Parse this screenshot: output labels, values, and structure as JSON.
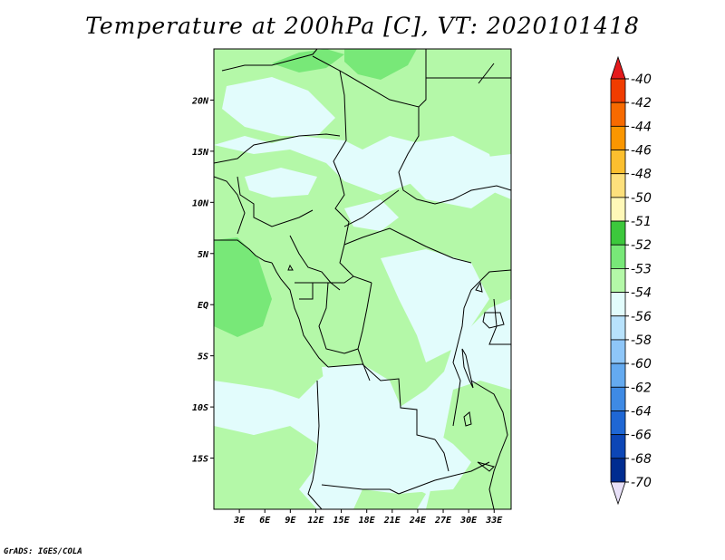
{
  "title": "Temperature at 200hPa [C], VT: 2020101418",
  "footer": "GrADS: IGES/COLA",
  "map": {
    "lat_labels": [
      "20N",
      "15N",
      "10N",
      "5N",
      "EQ",
      "5S",
      "10S",
      "15S"
    ],
    "lon_labels": [
      "3E",
      "6E",
      "9E",
      "12E",
      "15E",
      "18E",
      "21E",
      "24E",
      "27E",
      "30E",
      "33E"
    ],
    "lat_values": [
      20,
      15,
      10,
      5,
      0,
      -5,
      -10,
      -15
    ],
    "lon_values": [
      3,
      6,
      9,
      12,
      15,
      18,
      21,
      24,
      27,
      30,
      33
    ],
    "lon_range": [
      0,
      35
    ],
    "lat_range": [
      -20,
      25
    ]
  },
  "colorbar": {
    "levels": [
      "-40",
      "-42",
      "-44",
      "-46",
      "-48",
      "-50",
      "-51",
      "-52",
      "-53",
      "-54",
      "-56",
      "-58",
      "-60",
      "-62",
      "-64",
      "-66",
      "-68",
      "-70"
    ],
    "colors": [
      "#e41a1c",
      "#f03c00",
      "#f76a00",
      "#fa9600",
      "#fbbf2f",
      "#fde07c",
      "#fff8b8",
      "#3cc83c",
      "#78e878",
      "#b4f8a8",
      "#e2fcfc",
      "#b8e2fc",
      "#8ec6f8",
      "#64aaf0",
      "#3e8ae4",
      "#1f67d4",
      "#0c46b6",
      "#002c90",
      "#000e60",
      "#e8e0f8"
    ]
  },
  "field_colors": {
    "lt_m54": "#e2fcfc",
    "m54_m53": "#b4f8a8",
    "m53_m52": "#78e878",
    "border": "#000000"
  }
}
